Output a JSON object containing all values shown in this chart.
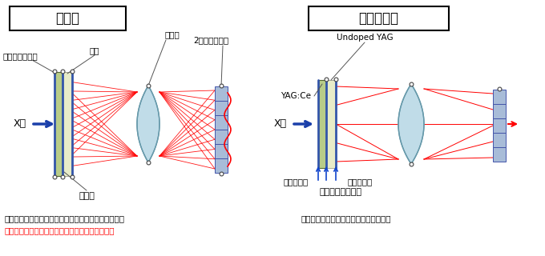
{
  "title_left": "従来法",
  "title_right": "本研究提案",
  "label_scintillator": "シンチレーター",
  "label_substrate": "基板",
  "label_lens": "レンズ",
  "label_sensor": "2次元センサー",
  "label_adhesive": "接着剤",
  "label_xray_left": "X線",
  "label_xray_right": "X線",
  "label_undoped": "Undoped YAG",
  "label_yagce": "YAG:Ce",
  "label_antirefl1": "反射防止膜",
  "label_antirefl2": "反射防止膜",
  "label_refr": "ほぼ一様な屈折率",
  "caption_left1": "発光フィルムと透明基板を接着材で張り付ける方法。",
  "caption_left2": "界面・表面でおきる反射や散乱で画像がボケる。",
  "caption_right": "界面の反射を防ぎ、空間分解能が保つ。",
  "bg_color": "#ffffff",
  "scint_green": "#b8cc88",
  "scint_cream": "#e8ecc8",
  "glass_color": "#c0dce8",
  "sensor_color": "#a8bcd8",
  "red": "#ff0000",
  "blue_arrow": "#1a3faa",
  "dark": "#333333",
  "blue_line": "#3355aa"
}
